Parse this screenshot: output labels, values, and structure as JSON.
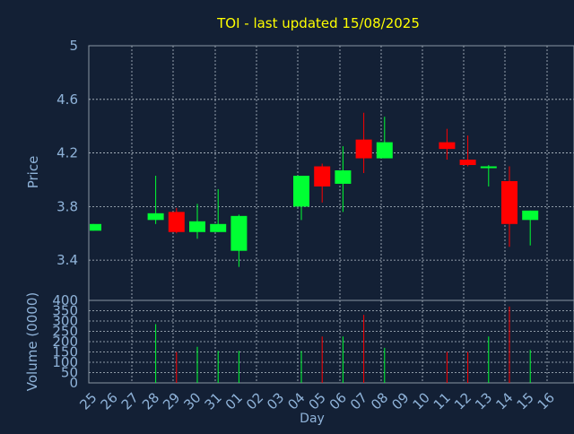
{
  "colors": {
    "background": "#132035",
    "title": "#ffff00",
    "axis_text": "#8fb3d9",
    "grid": "#b8c2cc",
    "up": "#00ff33",
    "down": "#ff0000"
  },
  "chart_data": {
    "type": "candlestick",
    "title": "TOI - last updated 15/08/2025",
    "price_panel": {
      "ylabel": "Price",
      "ylim": [
        3.1,
        5.0
      ],
      "yticks": [
        "5",
        "4.6",
        "4.2",
        "3.8",
        "3.4"
      ]
    },
    "volume_panel": {
      "ylabel": "Volume (0000)",
      "ylim": [
        0,
        400
      ],
      "yticks": [
        "400",
        "350",
        "300",
        "250",
        "200",
        "150",
        "100",
        "50",
        "0"
      ]
    },
    "xlabel": "Day",
    "categories": [
      "25",
      "26",
      "27",
      "28",
      "29",
      "30",
      "31",
      "01",
      "02",
      "03",
      "04",
      "05",
      "06",
      "07",
      "08",
      "09",
      "10",
      "11",
      "12",
      "13",
      "14",
      "15",
      "16"
    ],
    "candles": [
      {
        "day": "25",
        "open": 3.62,
        "high": 3.67,
        "low": 3.62,
        "close": 3.67,
        "volume": 0
      },
      {
        "day": "28",
        "open": 3.7,
        "high": 4.03,
        "low": 3.67,
        "close": 3.75,
        "volume": 285
      },
      {
        "day": "29",
        "open": 3.76,
        "high": 3.79,
        "low": 3.6,
        "close": 3.61,
        "volume": 150
      },
      {
        "day": "30",
        "open": 3.61,
        "high": 3.82,
        "low": 3.56,
        "close": 3.69,
        "volume": 175
      },
      {
        "day": "31",
        "open": 3.61,
        "high": 3.93,
        "low": 3.61,
        "close": 3.67,
        "volume": 155
      },
      {
        "day": "01",
        "open": 3.47,
        "high": 3.74,
        "low": 3.35,
        "close": 3.73,
        "volume": 155
      },
      {
        "day": "04",
        "open": 3.8,
        "high": 4.03,
        "low": 3.7,
        "close": 4.03,
        "volume": 155
      },
      {
        "day": "05",
        "open": 4.1,
        "high": 4.12,
        "low": 3.83,
        "close": 3.95,
        "volume": 225
      },
      {
        "day": "06",
        "open": 3.97,
        "high": 4.25,
        "low": 3.76,
        "close": 4.07,
        "volume": 225
      },
      {
        "day": "07",
        "open": 4.3,
        "high": 4.5,
        "low": 4.05,
        "close": 4.16,
        "volume": 330
      },
      {
        "day": "08",
        "open": 4.16,
        "high": 4.47,
        "low": 4.16,
        "close": 4.28,
        "volume": 170
      },
      {
        "day": "11",
        "open": 4.28,
        "high": 4.38,
        "low": 4.15,
        "close": 4.23,
        "volume": 150
      },
      {
        "day": "12",
        "open": 4.15,
        "high": 4.33,
        "low": 4.1,
        "close": 4.11,
        "volume": 150
      },
      {
        "day": "13",
        "open": 4.09,
        "high": 4.11,
        "low": 3.95,
        "close": 4.1,
        "volume": 225
      },
      {
        "day": "14",
        "open": 3.99,
        "high": 4.1,
        "low": 3.5,
        "close": 3.67,
        "volume": 370
      },
      {
        "day": "15",
        "open": 3.7,
        "high": 3.77,
        "low": 3.51,
        "close": 3.77,
        "volume": 160
      }
    ]
  }
}
